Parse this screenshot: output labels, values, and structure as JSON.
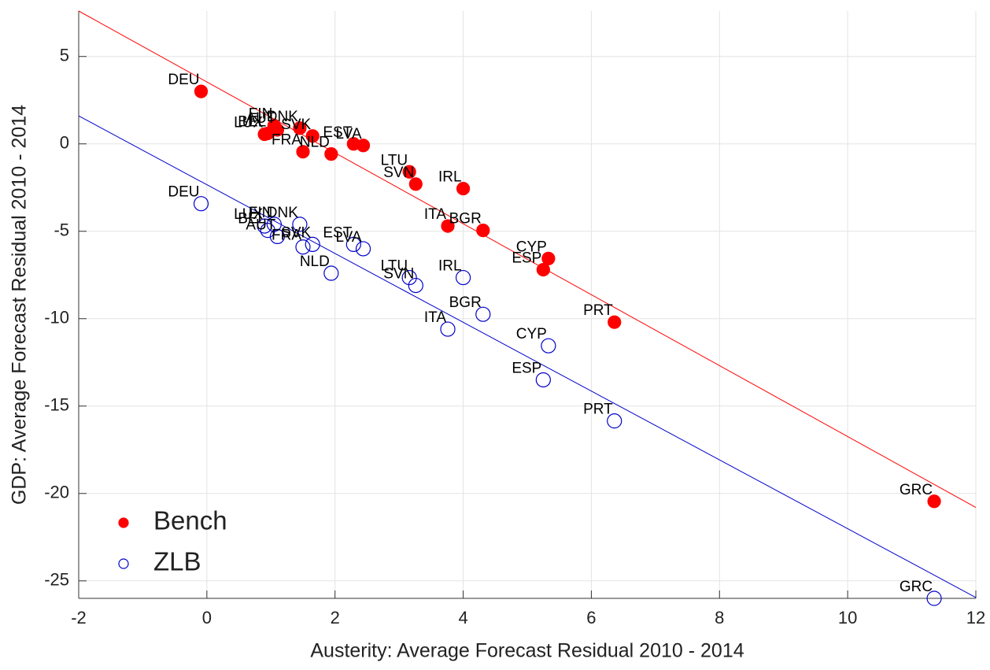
{
  "chart_data": {
    "type": "scatter",
    "xlabel": "Austerity: Average Forecast Residual 2010 - 2014",
    "ylabel": "GDP: Average Forecast Residual 2010 - 2014",
    "labels": [
      "DEU",
      "LUX",
      "BEL",
      "FIN",
      "AUT",
      "DNK",
      "SVK",
      "FRA",
      "NLD",
      "EST",
      "LVA",
      "LTU",
      "SVN",
      "IRL",
      "ITA",
      "BGR",
      "CYP",
      "ESP",
      "PRT",
      "GRC"
    ],
    "x": [
      -0.09,
      0.9,
      0.95,
      1.05,
      1.1,
      1.45,
      1.65,
      1.5,
      1.94,
      2.29,
      2.44,
      3.16,
      3.26,
      4.0,
      3.76,
      4.31,
      5.33,
      5.25,
      6.36,
      11.35
    ],
    "series": [
      {
        "name": "Bench",
        "color": "#ff0000",
        "filled": true,
        "values": [
          3.0,
          0.55,
          0.6,
          1.05,
          0.8,
          0.9,
          0.45,
          -0.45,
          -0.58,
          0.0,
          -0.09,
          -1.6,
          -2.3,
          -2.56,
          -4.7,
          -4.95,
          -6.56,
          -7.2,
          -10.2,
          -20.45
        ],
        "fit": {
          "x": [
            -2,
            12
          ],
          "y": [
            7.6,
            -20.8
          ]
        }
      },
      {
        "name": "ZLB",
        "color": "#0000cc",
        "filled": false,
        "values": [
          -3.42,
          -4.7,
          -4.95,
          -4.6,
          -5.3,
          -4.6,
          -5.75,
          -5.9,
          -7.4,
          -5.75,
          -6.0,
          -7.65,
          -8.1,
          -7.65,
          -10.6,
          -9.75,
          -11.55,
          -13.5,
          -15.85,
          -26.0
        ],
        "fit": {
          "x": [
            -2,
            12
          ],
          "y": [
            1.6,
            -25.95
          ]
        }
      }
    ],
    "xlim": [
      -2,
      12
    ],
    "ylim": [
      -26,
      7.6
    ],
    "xticks": [
      -2,
      0,
      2,
      4,
      6,
      8,
      10,
      12
    ],
    "yticks": [
      -25,
      -20,
      -15,
      -10,
      -5,
      0,
      5
    ],
    "grid": true,
    "legend": "lower left"
  }
}
